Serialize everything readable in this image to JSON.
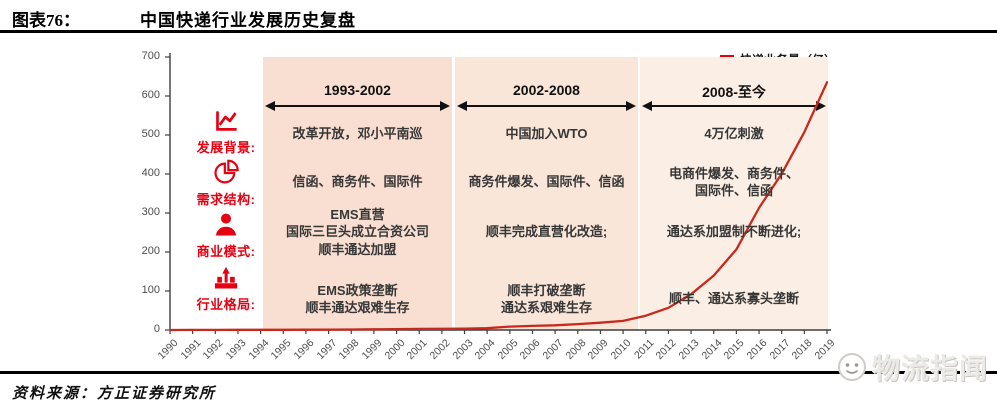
{
  "header": {
    "figure_label": "图表76：",
    "title": "中国快递行业发展历史复盘"
  },
  "legend": {
    "label": "快递业务量（亿）"
  },
  "rows": [
    {
      "icon": "line-chart-icon",
      "label": "发展背景:"
    },
    {
      "icon": "pie-chart-icon",
      "label": "需求结构:"
    },
    {
      "icon": "person-icon",
      "label": "商业模式:"
    },
    {
      "icon": "bar-growth-icon",
      "label": "行业格局:"
    }
  ],
  "periods": [
    {
      "label": "1993-2002",
      "background_color": "#f8dfd2",
      "cells": {
        "development": "改革开放，邓小平南巡",
        "demand": "信函、商务件、国际件",
        "business": "EMS直营\n国际三巨头成立合资公司\n顺丰通达加盟",
        "landscape": "EMS政策垄断\n顺丰通达艰难生存"
      }
    },
    {
      "label": "2002-2008",
      "background_color": "#f9e6d9",
      "cells": {
        "development": "中国加入WTO",
        "demand": "商务件爆发、国际件、信函",
        "business": "顺丰完成直营化改造;",
        "landscape": "顺丰打破垄断\n通达系艰难生存"
      }
    },
    {
      "label": "2008-至今",
      "background_color": "#fbeee4",
      "cells": {
        "development": "4万亿刺激",
        "demand": "电商件爆发、商务件、\n国际件、信函",
        "business": "通达系加盟制不断进化;",
        "landscape": "顺丰、通达系寡头垄断"
      }
    }
  ],
  "chart_data": {
    "type": "line",
    "title": "中国快递行业发展历史复盘",
    "x": [
      1990,
      1991,
      1992,
      1993,
      1994,
      1995,
      1996,
      1997,
      1998,
      1999,
      2000,
      2001,
      2002,
      2003,
      2004,
      2005,
      2006,
      2007,
      2008,
      2009,
      2010,
      2011,
      2012,
      2013,
      2014,
      2015,
      2016,
      2017,
      2018,
      2019
    ],
    "series": [
      {
        "name": "快递业务量（亿）",
        "values": [
          0.1,
          0.2,
          0.3,
          0.4,
          0.5,
          0.6,
          0.8,
          1.0,
          1.4,
          1.8,
          2.2,
          2.7,
          3.2,
          3.7,
          4.5,
          8.6,
          10.6,
          12.0,
          15.1,
          18.6,
          23.4,
          36.7,
          56.9,
          91.9,
          139.6,
          206.7,
          312.8,
          400.6,
          507.1,
          635.2
        ]
      }
    ],
    "ylim": [
      0,
      700
    ],
    "y_ticks": [
      0,
      100,
      200,
      300,
      400,
      500,
      600,
      700
    ],
    "line_color": "#c9291d",
    "grid": false,
    "legend_position": "top-right"
  },
  "accent": {
    "red": "#e60012",
    "line_red": "#c9291d"
  },
  "footer": {
    "source": "资料来源：方正证券研究所",
    "watermark": "物流指闻"
  }
}
